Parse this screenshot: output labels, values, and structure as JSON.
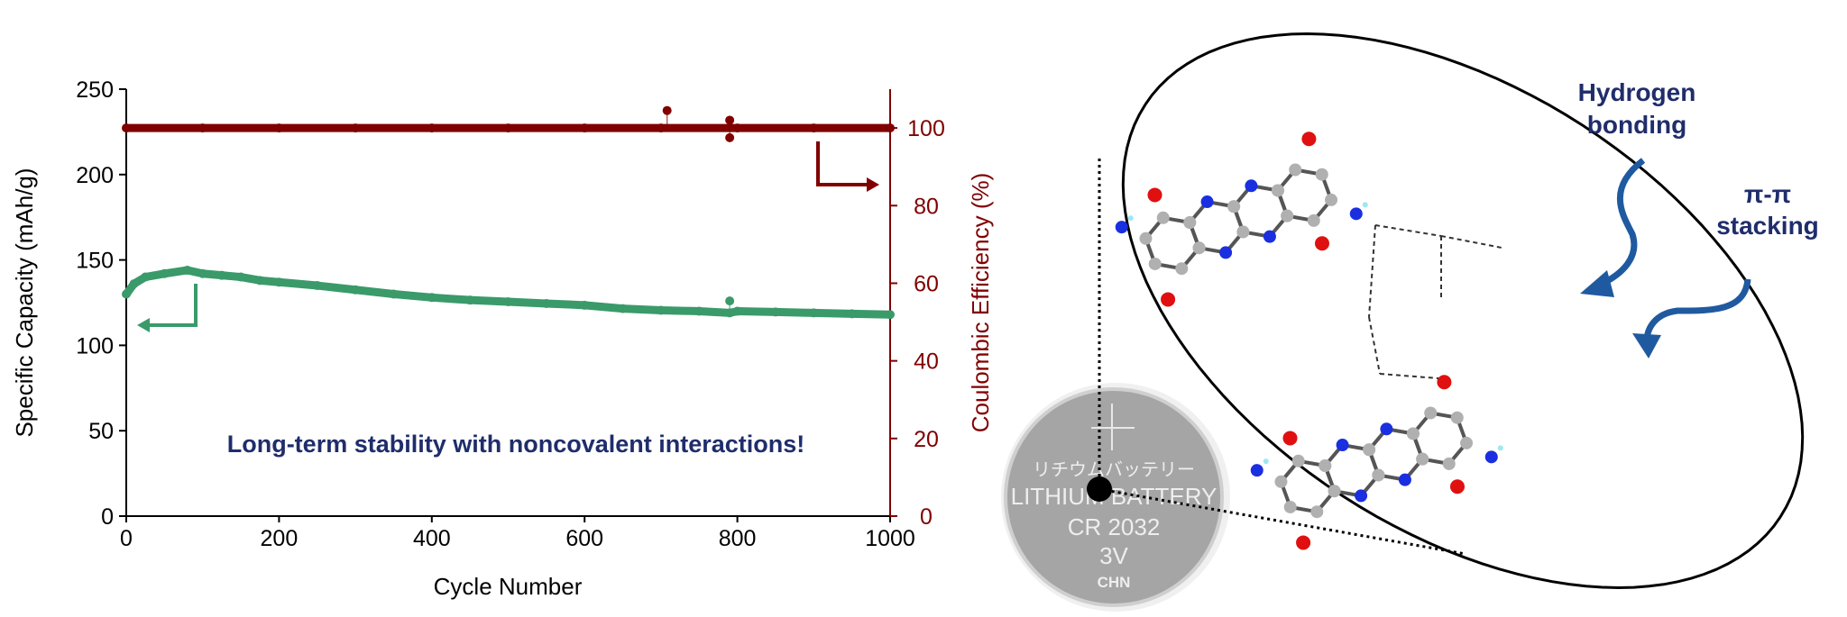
{
  "chart_data": {
    "type": "scatter",
    "xlabel": "Cycle Number",
    "ylabel": "Specific Capacity (mAh/g)",
    "y2label": "Coulombic Efficiency (%)",
    "xlim": [
      0,
      1000
    ],
    "ylim": [
      0,
      250
    ],
    "y2lim": [
      0,
      110
    ],
    "xticks": [
      0,
      200,
      400,
      600,
      800,
      1000
    ],
    "yticks": [
      0,
      50,
      100,
      150,
      200,
      250
    ],
    "y2ticks": [
      0,
      20,
      40,
      60,
      80,
      100
    ],
    "grid": false,
    "annotation": "Long-term stability with noncovalent interactions!",
    "colors": {
      "capacity": "#3a9a6a",
      "efficiency": "#800000",
      "annotation": "#1f2d6b"
    },
    "series": [
      {
        "axis": "left",
        "x": [
          0,
          10,
          25,
          50,
          80,
          100,
          125,
          150,
          175,
          200,
          250,
          300,
          350,
          400,
          450,
          500,
          550,
          600,
          650,
          700,
          750,
          790,
          800,
          850,
          900,
          950,
          1000
        ],
        "y": [
          130,
          136,
          140,
          142,
          144,
          142,
          141,
          140,
          138,
          137,
          135,
          132.5,
          130,
          128,
          126.5,
          125.5,
          124.5,
          123.5,
          121.5,
          120.5,
          120,
          119,
          120,
          119.5,
          119,
          118.5,
          118
        ],
        "outliers": [
          [
            790,
            126
          ]
        ]
      },
      {
        "axis": "right",
        "x": [
          0,
          100,
          200,
          300,
          400,
          500,
          600,
          700,
          800,
          900,
          1000
        ],
        "y": [
          100,
          100,
          100,
          100,
          100,
          100,
          100,
          100,
          100,
          100,
          100
        ],
        "outliers": [
          [
            708,
            104.5
          ],
          [
            790,
            102
          ],
          [
            790,
            97.5
          ]
        ]
      }
    ]
  },
  "diagram": {
    "labels": {
      "hbond": "Hydrogen bonding",
      "hbond_line1": "Hydrogen",
      "hbond_line2": "bonding",
      "pipi_line1": "π-π",
      "pipi_line2": "stacking"
    },
    "coin": {
      "jp": "リチウムバッテリー",
      "line1": "LITHIUM BATTERY",
      "line2": "CR 2032",
      "line3": "3V",
      "line4": "CHN"
    },
    "colors": {
      "label": "#1f2d6b",
      "arrow": "#1f5aa0",
      "oxygen": "#e01010",
      "nitrogen": "#1a2fe0",
      "carbon": "#b0b0b0",
      "hydrogen": "#9ee8ee"
    }
  }
}
